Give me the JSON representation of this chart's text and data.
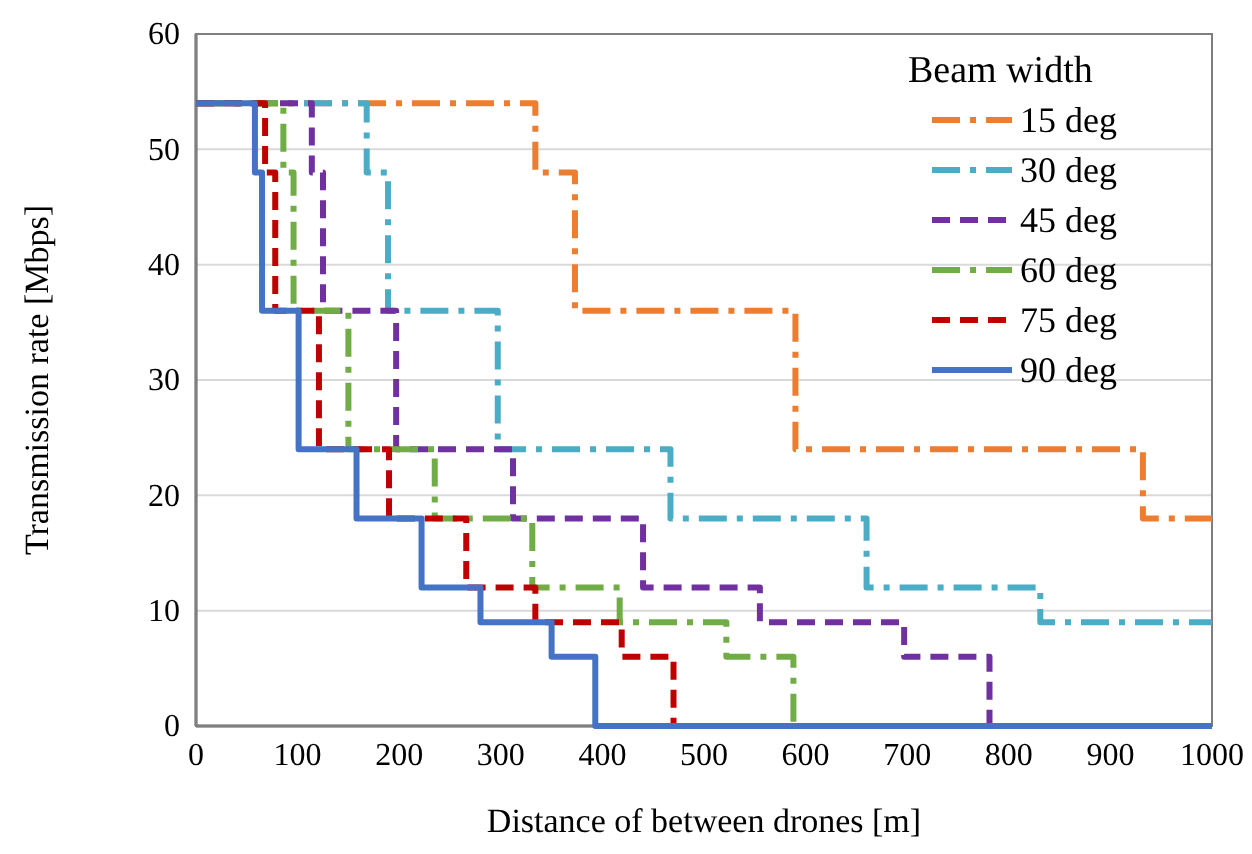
{
  "chart_data": {
    "type": "step",
    "xlabel": "Distance of between drones [m]",
    "ylabel": "Transmission rate [Mbps]",
    "legend_title": "Beam width",
    "legend": "top right",
    "grid": "y",
    "xlim": [
      0,
      1000
    ],
    "ylim": [
      0,
      60
    ],
    "xticks": [
      0,
      100,
      200,
      300,
      400,
      500,
      600,
      700,
      800,
      900,
      1000
    ],
    "yticks": [
      0,
      10,
      20,
      30,
      40,
      50,
      60
    ],
    "series": [
      {
        "name": "15 deg",
        "color": "#ed7d31",
        "line_style": "dashdot",
        "x": [
          0,
          334,
          373,
          590,
          932,
          1000
        ],
        "values": [
          54,
          48,
          36,
          24,
          18,
          18
        ]
      },
      {
        "name": "30 deg",
        "color": "#4bacc6",
        "line_style": "dashdot",
        "x": [
          0,
          168,
          189,
          297,
          467,
          660,
          831,
          1000
        ],
        "values": [
          54,
          48,
          36,
          24,
          18,
          12,
          9,
          9
        ]
      },
      {
        "name": "45 deg",
        "color": "#7030a0",
        "line_style": "dashed",
        "x": [
          0,
          114,
          125,
          197,
          312,
          440,
          555,
          697,
          781
        ],
        "values": [
          54,
          48,
          36,
          24,
          18,
          12,
          9,
          6,
          0
        ]
      },
      {
        "name": "60 deg",
        "color": "#70ad47",
        "line_style": "dashdot",
        "x": [
          0,
          86,
          96,
          150,
          235,
          331,
          417,
          522,
          588
        ],
        "values": [
          54,
          48,
          36,
          24,
          18,
          12,
          9,
          6,
          0
        ]
      },
      {
        "name": "75 deg",
        "color": "#c00000",
        "line_style": "dashed",
        "x": [
          0,
          68,
          78,
          121,
          190,
          266,
          334,
          419,
          470
        ],
        "values": [
          54,
          48,
          36,
          24,
          18,
          12,
          9,
          6,
          0
        ]
      },
      {
        "name": "90 deg",
        "color": "#4472c4",
        "line_style": "solid",
        "x": [
          0,
          58,
          65,
          101,
          158,
          222,
          280,
          350,
          393,
          1000
        ],
        "values": [
          54,
          48,
          36,
          24,
          18,
          12,
          9,
          6,
          0,
          0
        ]
      }
    ]
  }
}
